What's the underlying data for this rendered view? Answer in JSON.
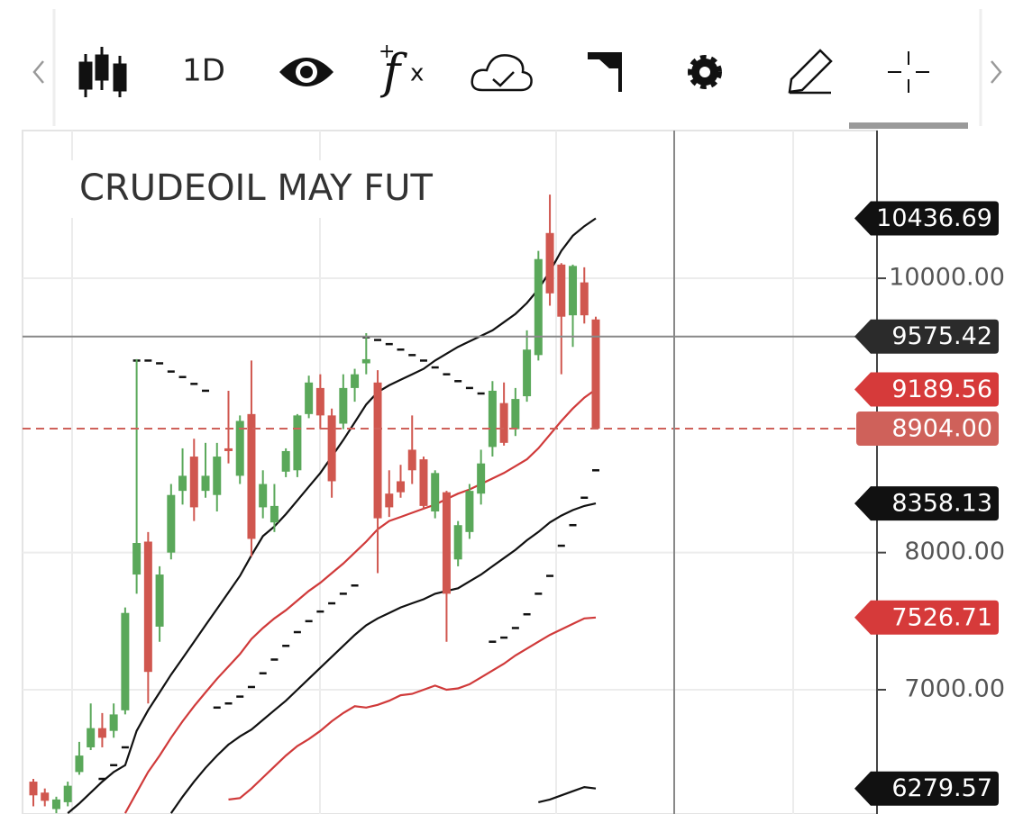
{
  "toolbar": {
    "interval": "1D"
  },
  "chart_data": {
    "type": "candlestick",
    "title": "CRUDEOIL MAY FUT",
    "ylim": [
      6094,
      11077
    ],
    "yticks": [
      {
        "value": 10000,
        "label": "10000.00"
      },
      {
        "value": 8000,
        "label": "8000.00"
      },
      {
        "value": 7000,
        "label": "7000.00"
      }
    ],
    "grid": true,
    "up_color": "#5aa85a",
    "down_color": "#d0574f",
    "open": [
      6330,
      6250,
      6130,
      6180,
      6400,
      6580,
      6720,
      6700,
      6850,
      7840,
      8080,
      7460,
      8000,
      8450,
      8700,
      8450,
      8420,
      8760,
      8560,
      9010,
      8330,
      8220,
      8590,
      8600,
      9010,
      9200,
      9000,
      8940,
      9200,
      9380,
      9240,
      8430,
      8520,
      8750,
      8680,
      8300,
      8440,
      7950,
      8150,
      8430,
      8770,
      9090,
      8900,
      9140,
      9440,
      10330,
      10100,
      9730,
      9970,
      9700
    ],
    "high": [
      6350,
      6280,
      6220,
      6330,
      6620,
      6900,
      6830,
      6900,
      7600,
      9410,
      8150,
      7900,
      8500,
      8760,
      8830,
      8800,
      8800,
      9180,
      9000,
      9400,
      8600,
      8500,
      8760,
      9010,
      9290,
      9300,
      9050,
      9300,
      9340,
      9600,
      9330,
      8600,
      8640,
      9000,
      8700,
      8600,
      8450,
      8230,
      8500,
      8750,
      9250,
      9240,
      9200,
      9620,
      10200,
      10610,
      10110,
      10100,
      10080,
      9720
    ],
    "low": [
      6150,
      6150,
      6100,
      6150,
      6380,
      6560,
      6580,
      6650,
      6820,
      7700,
      6900,
      7350,
      7950,
      8350,
      8230,
      8400,
      8300,
      8650,
      8500,
      7970,
      8250,
      8150,
      8550,
      8550,
      8980,
      8900,
      8400,
      8900,
      9100,
      9300,
      7850,
      8260,
      8400,
      8500,
      8320,
      8250,
      7350,
      7900,
      8100,
      8350,
      8700,
      8780,
      8850,
      9100,
      9400,
      9800,
      9300,
      9500,
      9670,
      8904
    ],
    "close": [
      6230,
      6190,
      6200,
      6300,
      6520,
      6720,
      6650,
      6820,
      7560,
      8070,
      7130,
      7840,
      8420,
      8560,
      8330,
      8560,
      8700,
      8740,
      8960,
      8100,
      8500,
      8340,
      8740,
      9000,
      9240,
      9000,
      8520,
      9200,
      9300,
      9410,
      8250,
      8330,
      8440,
      8600,
      8340,
      8580,
      7700,
      8200,
      8450,
      8650,
      9180,
      8800,
      9120,
      9480,
      10140,
      9890,
      9720,
      10090,
      9730,
      8904
    ],
    "lines": [
      {
        "color": "#111",
        "values": [
          null,
          null,
          null,
          6100,
          6170,
          6250,
          6330,
          6400,
          6450,
          6700,
          6850,
          6980,
          7110,
          7230,
          7350,
          7470,
          7590,
          7710,
          7830,
          7980,
          8120,
          8190,
          8280,
          8380,
          8480,
          8580,
          8700,
          8820,
          8950,
          9080,
          9170,
          9220,
          9260,
          9300,
          9340,
          9400,
          9450,
          9500,
          9540,
          9580,
          9620,
          9680,
          9740,
          9820,
          9920,
          10050,
          10200,
          10310,
          10380,
          10436.69
        ]
      },
      {
        "color": "#d03a3a",
        "values": [
          null,
          null,
          null,
          null,
          null,
          null,
          null,
          null,
          6100,
          6250,
          6400,
          6520,
          6650,
          6770,
          6880,
          6980,
          7080,
          7170,
          7260,
          7370,
          7450,
          7520,
          7580,
          7650,
          7720,
          7780,
          7850,
          7920,
          8000,
          8080,
          8170,
          8230,
          8260,
          8290,
          8320,
          8350,
          8390,
          8430,
          8460,
          8500,
          8540,
          8580,
          8630,
          8680,
          8760,
          8860,
          8960,
          9050,
          9130,
          9189.56
        ]
      },
      {
        "color": "#111",
        "values": [
          null,
          null,
          null,
          null,
          null,
          null,
          null,
          null,
          null,
          null,
          null,
          null,
          6100,
          6220,
          6330,
          6430,
          6520,
          6600,
          6660,
          6710,
          6780,
          6850,
          6920,
          7000,
          7080,
          7160,
          7240,
          7320,
          7400,
          7470,
          7520,
          7560,
          7600,
          7630,
          7660,
          7700,
          7720,
          7740,
          7790,
          7840,
          7900,
          7960,
          8020,
          8090,
          8150,
          8220,
          8270,
          8310,
          8340,
          8358.13
        ]
      },
      {
        "color": "#d03a3a",
        "values": [
          null,
          null,
          null,
          null,
          null,
          null,
          null,
          null,
          null,
          null,
          null,
          null,
          null,
          null,
          null,
          null,
          null,
          6200,
          6210,
          6280,
          6360,
          6440,
          6520,
          6590,
          6640,
          6700,
          6770,
          6830,
          6880,
          6870,
          6890,
          6920,
          6960,
          6970,
          7000,
          7030,
          7000,
          7010,
          7040,
          7090,
          7140,
          7190,
          7250,
          7300,
          7350,
          7400,
          7440,
          7480,
          7520,
          7526.71
        ]
      },
      {
        "color": "#111",
        "values": [
          null,
          null,
          null,
          null,
          null,
          null,
          null,
          null,
          null,
          null,
          null,
          null,
          null,
          null,
          null,
          null,
          null,
          null,
          null,
          null,
          null,
          null,
          null,
          null,
          null,
          null,
          null,
          null,
          null,
          null,
          null,
          null,
          null,
          null,
          null,
          null,
          null,
          null,
          null,
          null,
          null,
          null,
          null,
          null,
          6180,
          6200,
          6230,
          6260,
          6290,
          6279.57
        ]
      }
    ],
    "sar": {
      "color": "#111",
      "values": [
        null,
        null,
        null,
        null,
        null,
        null,
        6350,
        6450,
        6580,
        9400,
        9400,
        9380,
        9320,
        9280,
        9230,
        9180,
        6870,
        6900,
        6950,
        7020,
        7120,
        7220,
        7320,
        7420,
        7500,
        7570,
        7630,
        7700,
        7760,
        9570,
        9550,
        9520,
        9480,
        9440,
        9400,
        9350,
        9300,
        9250,
        9200,
        9160,
        7350,
        7380,
        7450,
        7550,
        7700,
        7830,
        8050,
        8200,
        8400,
        8600
      ]
    },
    "crosshair": {
      "value": 9575.42,
      "color": "#2b2b2b"
    },
    "last_price": {
      "value": 8904,
      "label": "8904.00",
      "color": "#cf615a"
    },
    "price_tags": [
      {
        "value": 10436.69,
        "color": "#111"
      },
      {
        "value": 9189.56,
        "color": "#d63a3a"
      },
      {
        "value": 8358.13,
        "color": "#111"
      },
      {
        "value": 7526.71,
        "color": "#d63a3a"
      },
      {
        "value": 6279.57,
        "color": "#111"
      }
    ]
  }
}
